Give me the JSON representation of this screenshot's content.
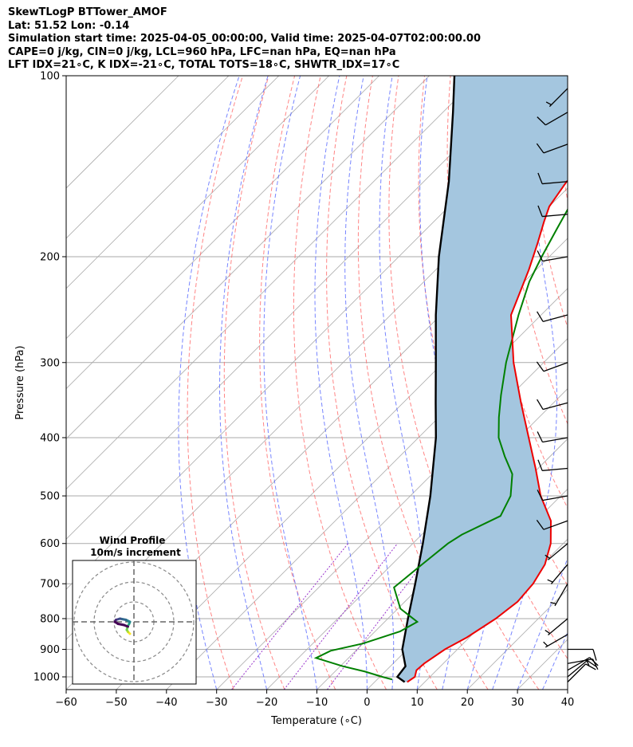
{
  "header": {
    "line1": "SkewTLogP BTTower_AMOF",
    "line2": "Lat: 51.52   Lon: -0.14",
    "line3": "Simulation start time: 2025-04-05_00:00:00, Valid time: 2025-04-07T02:00:00.00",
    "line4": "CAPE=0 j/kg, CIN=0 j/kg, LCL=960 hPa, LFC=nan hPa, EQ=nan hPa",
    "line5": "LFT IDX=21∘C, K IDX=-21∘C, TOTAL TOTS=18∘C, SHWTR_IDX=17∘C"
  },
  "chart_data": {
    "type": "line",
    "subtype": "skew-t log-p",
    "xlabel": "Temperature (∘C)",
    "ylabel": "Pressure (hPa)",
    "xlim": [
      -60,
      40
    ],
    "ylim": [
      1050,
      100
    ],
    "y_scale": "log",
    "grid": true,
    "x_ticks": [
      -60,
      -50,
      -40,
      -30,
      -20,
      -10,
      0,
      10,
      20,
      30,
      40
    ],
    "y_ticks": [
      100,
      200,
      300,
      400,
      500,
      600,
      700,
      800,
      900,
      1000
    ],
    "colors": {
      "temperature": "#ee0000",
      "dewpoint": "#008000",
      "parcel": "#000000",
      "shading": "#a4c6df",
      "dry_adiabats": "#ff6666",
      "moist_adiabats": "#5566ff",
      "mixing_ratio": "#9933cc",
      "isotherms": "#aaaaaa"
    },
    "series": [
      {
        "name": "Temperature",
        "points": [
          [
            6.5,
            1020
          ],
          [
            7.0,
            1000
          ],
          [
            6.0,
            975
          ],
          [
            6.2,
            950
          ],
          [
            7.5,
            900
          ],
          [
            9.5,
            860
          ],
          [
            11.5,
            800
          ],
          [
            12.5,
            750
          ],
          [
            12.0,
            700
          ],
          [
            10.5,
            650
          ],
          [
            7.5,
            600
          ],
          [
            3.0,
            550
          ],
          [
            -4.0,
            500
          ],
          [
            -10.5,
            450
          ],
          [
            -18.0,
            400
          ],
          [
            -26.5,
            350
          ],
          [
            -36.0,
            300
          ],
          [
            -46.0,
            250
          ],
          [
            -51.5,
            210
          ],
          [
            -55.0,
            190
          ],
          [
            -58.0,
            175
          ],
          [
            -60.0,
            165
          ],
          [
            -61.5,
            150
          ],
          [
            -61.0,
            135
          ],
          [
            -61.5,
            115
          ],
          [
            -62.0,
            100
          ]
        ]
      },
      {
        "name": "Dewpoint",
        "points": [
          [
            3.0,
            1010
          ],
          [
            0.5,
            1000
          ],
          [
            -4.0,
            980
          ],
          [
            -9.5,
            960
          ],
          [
            -16.5,
            930
          ],
          [
            -15.0,
            905
          ],
          [
            -10.0,
            880
          ],
          [
            -5.0,
            840
          ],
          [
            -3.5,
            810
          ],
          [
            -9.5,
            770
          ],
          [
            -15.0,
            710
          ],
          [
            -14.0,
            650
          ],
          [
            -13.0,
            600
          ],
          [
            -12.0,
            580
          ],
          [
            -8.0,
            540
          ],
          [
            -10.0,
            500
          ],
          [
            -14.0,
            460
          ],
          [
            -19.0,
            430
          ],
          [
            -24.0,
            400
          ],
          [
            -28.0,
            370
          ],
          [
            -32.0,
            340
          ],
          [
            -37.5,
            300
          ],
          [
            -44.5,
            250
          ],
          [
            -49.0,
            220
          ],
          [
            -51.5,
            200
          ],
          [
            -54.0,
            180
          ],
          [
            -56.0,
            165
          ],
          [
            -58.5,
            150
          ],
          [
            -63.0,
            140
          ],
          [
            -66.0,
            120
          ],
          [
            -71.0,
            100
          ]
        ]
      },
      {
        "name": "Parcel",
        "points": [
          [
            6.0,
            1020
          ],
          [
            3.5,
            1000
          ],
          [
            3.0,
            960
          ],
          [
            -1.0,
            900
          ],
          [
            -6.0,
            800
          ],
          [
            -11.5,
            700
          ],
          [
            -18.0,
            600
          ],
          [
            -26.0,
            500
          ],
          [
            -36.5,
            400
          ],
          [
            -43.5,
            350
          ],
          [
            -51.5,
            300
          ],
          [
            -61.0,
            250
          ],
          [
            -72.0,
            200
          ],
          [
            -85.0,
            150
          ],
          [
            -98.0,
            115
          ],
          [
            -105.0,
            100
          ]
        ]
      }
    ],
    "wind_barbs": [
      {
        "pressure": 1020,
        "dir": 45,
        "speed": 10
      },
      {
        "pressure": 1000,
        "dir": 50,
        "speed": 10
      },
      {
        "pressure": 975,
        "dir": 60,
        "speed": 10
      },
      {
        "pressure": 950,
        "dir": 80,
        "speed": 15
      },
      {
        "pressure": 900,
        "dir": 90,
        "speed": 10
      },
      {
        "pressure": 850,
        "dir": 240,
        "speed": 5
      },
      {
        "pressure": 800,
        "dir": 230,
        "speed": 5
      },
      {
        "pressure": 700,
        "dir": 210,
        "speed": 5
      },
      {
        "pressure": 650,
        "dir": 220,
        "speed": 5
      },
      {
        "pressure": 600,
        "dir": 230,
        "speed": 5
      },
      {
        "pressure": 550,
        "dir": 250,
        "speed": 10
      },
      {
        "pressure": 500,
        "dir": 260,
        "speed": 10
      },
      {
        "pressure": 450,
        "dir": 265,
        "speed": 10
      },
      {
        "pressure": 400,
        "dir": 260,
        "speed": 10
      },
      {
        "pressure": 350,
        "dir": 255,
        "speed": 10
      },
      {
        "pressure": 300,
        "dir": 250,
        "speed": 10
      },
      {
        "pressure": 250,
        "dir": 255,
        "speed": 10
      },
      {
        "pressure": 200,
        "dir": 260,
        "speed": 10
      },
      {
        "pressure": 170,
        "dir": 265,
        "speed": 10
      },
      {
        "pressure": 150,
        "dir": 265,
        "speed": 10
      },
      {
        "pressure": 130,
        "dir": 250,
        "speed": 10
      },
      {
        "pressure": 115,
        "dir": 240,
        "speed": 10
      },
      {
        "pressure": 105,
        "dir": 225,
        "speed": 5
      }
    ],
    "hodograph": {
      "title": "Wind Profile",
      "subtitle": "10m/s increment",
      "rings_ms": [
        10,
        20,
        30
      ],
      "points_uv": [
        [
          -1.0,
          -3.0
        ],
        [
          -1.5,
          -2.5
        ],
        [
          -1.8,
          -2.0
        ],
        [
          -1.5,
          -1.0
        ],
        [
          -1.2,
          -0.5
        ],
        [
          -1.0,
          0.0
        ],
        [
          -2.0,
          0.5
        ],
        [
          -3.5,
          0.8
        ],
        [
          -4.5,
          0.5
        ],
        [
          -4.8,
          0.0
        ],
        [
          -4.0,
          -0.5
        ],
        [
          -2.5,
          -0.8
        ],
        [
          -1.5,
          -1.2
        ]
      ]
    }
  }
}
